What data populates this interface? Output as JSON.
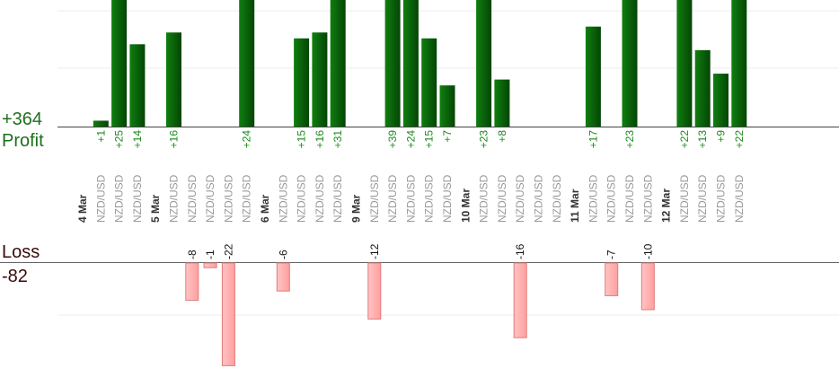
{
  "summary": {
    "profit_total": "+364",
    "profit_label": "Profit",
    "loss_label": "Loss",
    "loss_total": "-82"
  },
  "chart_data": {
    "type": "bar",
    "instrument": "NZD/USD",
    "dates": [
      "4 Mar",
      "5 Mar",
      "6 Mar",
      "9 Mar",
      "10 Mar",
      "11 Mar",
      "12 Mar"
    ],
    "slots": [
      {
        "date": "4 Mar"
      },
      {
        "profit": 1,
        "profit_label": "+1"
      },
      {
        "profit": 25,
        "profit_label": "+25"
      },
      {
        "profit": 14,
        "profit_label": "+14"
      },
      {
        "date": "5 Mar"
      },
      {
        "profit": 16,
        "profit_label": "+16"
      },
      {
        "loss": -8,
        "loss_label": "-8"
      },
      {
        "loss": -1,
        "loss_label": "-1"
      },
      {
        "loss": -22,
        "loss_label": "-22"
      },
      {
        "profit": 24,
        "profit_label": "+24"
      },
      {
        "date": "6 Mar"
      },
      {
        "loss": -6,
        "loss_label": "-6"
      },
      {
        "profit": 15,
        "profit_label": "+15"
      },
      {
        "profit": 16,
        "profit_label": "+16"
      },
      {
        "profit": 31,
        "profit_label": "+31"
      },
      {
        "date": "9 Mar"
      },
      {
        "loss": -12,
        "loss_label": "-12"
      },
      {
        "profit": 39,
        "profit_label": "+39"
      },
      {
        "profit": 24,
        "profit_label": "+24"
      },
      {
        "profit": 15,
        "profit_label": "+15"
      },
      {
        "profit": 7,
        "profit_label": "+7"
      },
      {
        "date": "10 Mar"
      },
      {
        "profit": 23,
        "profit_label": "+23"
      },
      {
        "profit": 8,
        "profit_label": "+8"
      },
      {
        "loss": -16,
        "loss_label": "-16"
      },
      {},
      {},
      {
        "date": "11 Mar"
      },
      {
        "profit": 17,
        "profit_label": "+17"
      },
      {
        "loss": -7,
        "loss_label": "-7"
      },
      {
        "profit": 23,
        "profit_label": "+23"
      },
      {
        "loss": -10,
        "loss_label": "-10"
      },
      {
        "date": "12 Mar"
      },
      {
        "profit": 22,
        "profit_label": "+22"
      },
      {
        "profit": 13,
        "profit_label": "+13"
      },
      {
        "profit": 9,
        "profit_label": "+9"
      },
      {
        "profit": 22,
        "profit_label": "+22"
      }
    ],
    "gridlines": true,
    "colors": {
      "profit": "#0a6b0a",
      "profit_dark": "#064806",
      "profit_text": "#1a8a1a",
      "loss": "#ffb3b3",
      "loss_stroke": "#e07a7a",
      "loss_text": "#111111",
      "profit_title": "#1e6e1e",
      "loss_title": "#3a0a0a"
    }
  }
}
